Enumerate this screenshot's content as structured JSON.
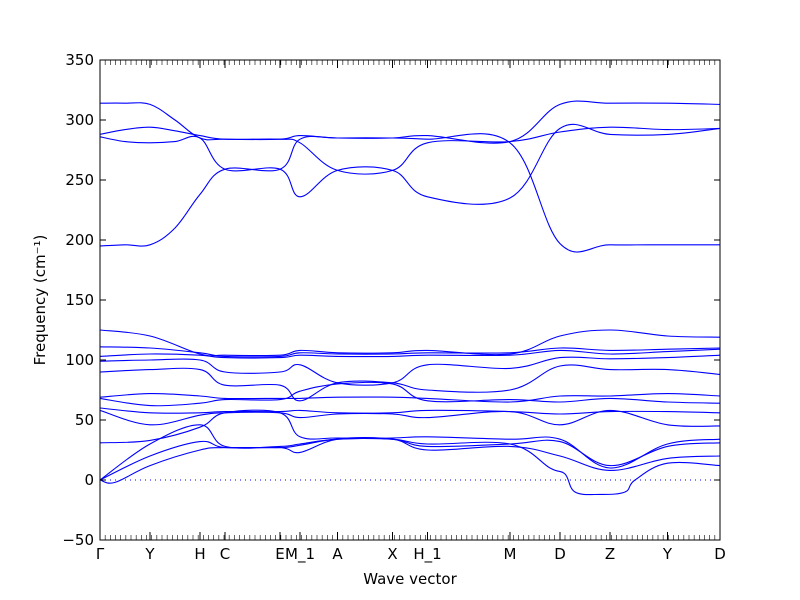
{
  "chart_data": {
    "type": "line",
    "title": "",
    "xlabel": "Wave vector",
    "ylabel": "Frequency (cm⁻¹)",
    "ylim": [
      -50,
      350
    ],
    "xlim": [
      0,
      12.4
    ],
    "yticks": [
      -50,
      0,
      50,
      100,
      150,
      200,
      250,
      300,
      350
    ],
    "xticks": [
      {
        "label": "Γ",
        "x": 0
      },
      {
        "label": "Y",
        "x": 1.0
      },
      {
        "label": "H",
        "x": 2.0
      },
      {
        "label": "C",
        "x": 2.5
      },
      {
        "label": "E",
        "x": 3.6
      },
      {
        "label": "M_1",
        "x": 4.0
      },
      {
        "label": "A",
        "x": 4.75
      },
      {
        "label": "X",
        "x": 5.85
      },
      {
        "label": "H_1",
        "x": 6.55
      },
      {
        "label": "M",
        "x": 8.2
      },
      {
        "label": "D",
        "x": 9.2
      },
      {
        "label": "Z",
        "x": 10.2
      },
      {
        "label": "Y",
        "x": 11.35
      },
      {
        "label": "D",
        "x": 12.4
      }
    ],
    "line_color": "#0000ff",
    "zero_line": {
      "y": 0,
      "style": "dotted",
      "color": "#0000ff"
    },
    "series": [
      {
        "x": [
          0,
          0.5,
          1.0,
          1.5,
          2.0,
          2.5,
          3.6,
          4.0,
          4.75,
          5.85,
          6.55,
          8.2,
          9.2,
          10.2,
          11.35,
          12.4
        ],
        "y": [
          314,
          314,
          313,
          300,
          285,
          284,
          284,
          287,
          285,
          285,
          287,
          282,
          313,
          314,
          314,
          313
        ]
      },
      {
        "x": [
          0,
          0.5,
          1.0,
          1.5,
          2.0,
          2.5,
          3.6,
          4.0,
          4.75,
          5.85,
          6.55,
          8.2,
          9.2,
          10.2,
          11.35,
          12.4
        ],
        "y": [
          288,
          292,
          294,
          291,
          287,
          284,
          284,
          281,
          258,
          258,
          281,
          282,
          290,
          294,
          292,
          293
        ]
      },
      {
        "x": [
          0,
          0.5,
          1.0,
          1.5,
          2.0,
          2.5,
          3.6,
          4.0,
          4.75,
          5.85,
          6.55,
          8.2,
          9.2,
          10.2,
          11.35,
          12.4
        ],
        "y": [
          286,
          282,
          281,
          282,
          285,
          259,
          259,
          236,
          258,
          258,
          236,
          235,
          293,
          288,
          288,
          293
        ]
      },
      {
        "x": [
          0,
          0.5,
          1.0,
          1.5,
          2.0,
          2.5,
          3.6,
          4.0,
          4.75,
          5.85,
          6.55,
          8.2,
          9.2,
          10.2,
          11.35,
          12.4
        ],
        "y": [
          195,
          196,
          196,
          210,
          238,
          259,
          259,
          284,
          285,
          285,
          284,
          281,
          197,
          196,
          196,
          196
        ]
      },
      {
        "x": [
          0,
          1.0,
          2.0,
          2.5,
          3.6,
          4.0,
          4.75,
          5.85,
          6.55,
          8.2,
          9.2,
          10.2,
          11.35,
          12.4
        ],
        "y": [
          125,
          120,
          105,
          104,
          104,
          108,
          106,
          106,
          108,
          105,
          120,
          125,
          120,
          119
        ]
      },
      {
        "x": [
          0,
          1.0,
          2.0,
          2.5,
          3.6,
          4.0,
          4.75,
          5.85,
          6.55,
          8.2,
          9.2,
          10.2,
          11.35,
          12.4
        ],
        "y": [
          111,
          110,
          106,
          103,
          103,
          106,
          105,
          105,
          106,
          106,
          110,
          108,
          109,
          110
        ]
      },
      {
        "x": [
          0,
          1.0,
          2.0,
          2.5,
          3.6,
          4.0,
          4.75,
          5.85,
          6.55,
          8.2,
          9.2,
          10.2,
          11.35,
          12.4
        ],
        "y": [
          103,
          105,
          104,
          102,
          102,
          104,
          103,
          103,
          104,
          104,
          108,
          105,
          107,
          109
        ]
      },
      {
        "x": [
          0,
          1.0,
          2.0,
          2.5,
          3.6,
          4.0,
          4.75,
          5.85,
          6.55,
          8.2,
          9.2,
          10.2,
          11.35,
          12.4
        ],
        "y": [
          99,
          100,
          100,
          90,
          90,
          96,
          81,
          81,
          96,
          93,
          102,
          101,
          102,
          104
        ]
      },
      {
        "x": [
          0,
          1.0,
          2.0,
          2.5,
          3.6,
          4.0,
          4.75,
          5.85,
          6.55,
          8.2,
          9.2,
          10.2,
          11.35,
          12.4
        ],
        "y": [
          90,
          92,
          92,
          79,
          79,
          66,
          81,
          81,
          75,
          75,
          95,
          92,
          92,
          88
        ]
      },
      {
        "x": [
          0,
          1.0,
          2.0,
          2.5,
          3.6,
          4.0,
          4.75,
          5.85,
          6.55,
          8.2,
          9.2,
          10.2,
          11.35,
          12.4
        ],
        "y": [
          69,
          72,
          70,
          68,
          68,
          68,
          69,
          69,
          68,
          65,
          70,
          70,
          72,
          70
        ]
      },
      {
        "x": [
          0,
          1.0,
          2.0,
          2.5,
          3.6,
          4.0,
          4.75,
          5.85,
          6.55,
          8.2,
          9.2,
          10.2,
          11.35,
          12.4
        ],
        "y": [
          68,
          62,
          64,
          67,
          67,
          74,
          80,
          80,
          66,
          67,
          65,
          68,
          65,
          64
        ]
      },
      {
        "x": [
          0,
          1.0,
          2.0,
          2.5,
          3.6,
          4.0,
          4.75,
          5.85,
          6.55,
          8.2,
          9.2,
          10.2,
          11.35,
          12.4
        ],
        "y": [
          60,
          56,
          56,
          57,
          57,
          58,
          56,
          56,
          58,
          57,
          55,
          57,
          57,
          56
        ]
      },
      {
        "x": [
          0,
          1.0,
          2.0,
          2.5,
          3.6,
          4.0,
          4.75,
          5.85,
          6.55,
          8.2,
          9.2,
          10.2,
          11.35,
          12.4
        ],
        "y": [
          58,
          46,
          54,
          56,
          56,
          52,
          55,
          55,
          52,
          57,
          46,
          58,
          46,
          45
        ]
      },
      {
        "x": [
          0,
          1.0,
          2.0,
          2.5,
          3.6,
          4.0,
          4.75,
          5.85,
          6.55,
          8.2,
          9.2,
          10.2,
          11.35,
          12.4
        ],
        "y": [
          31,
          33,
          44,
          56,
          56,
          36,
          35,
          35,
          36,
          34,
          34,
          10,
          30,
          34
        ]
      },
      {
        "x": [
          0,
          1.0,
          2.0,
          2.5,
          3.6,
          4.0,
          4.75,
          5.85,
          6.55,
          8.2,
          9.2,
          10.2,
          11.35,
          12.4
        ],
        "y": [
          0,
          30,
          46,
          28,
          28,
          30,
          34,
          34,
          28,
          30,
          32,
          12,
          28,
          31
        ]
      },
      {
        "x": [
          0,
          1.0,
          2.0,
          2.5,
          3.6,
          4.0,
          4.75,
          5.85,
          6.55,
          8.2,
          9.2,
          10.2,
          11.35,
          12.4
        ],
        "y": [
          0,
          20,
          32,
          27,
          27,
          23,
          34,
          34,
          25,
          28,
          20,
          8,
          18,
          20
        ]
      },
      {
        "x": [
          0,
          0.3,
          1.0,
          2.0,
          2.5,
          3.6,
          4.0,
          4.75,
          5.85,
          6.55,
          8.2,
          9.0,
          9.3,
          9.5,
          10.0,
          10.5,
          10.7,
          11.35,
          12.4
        ],
        "y": [
          0,
          -2,
          12,
          25,
          27,
          27,
          29,
          34,
          34,
          30,
          30,
          10,
          5,
          -10,
          -12,
          -10,
          0,
          14,
          12
        ]
      }
    ]
  }
}
